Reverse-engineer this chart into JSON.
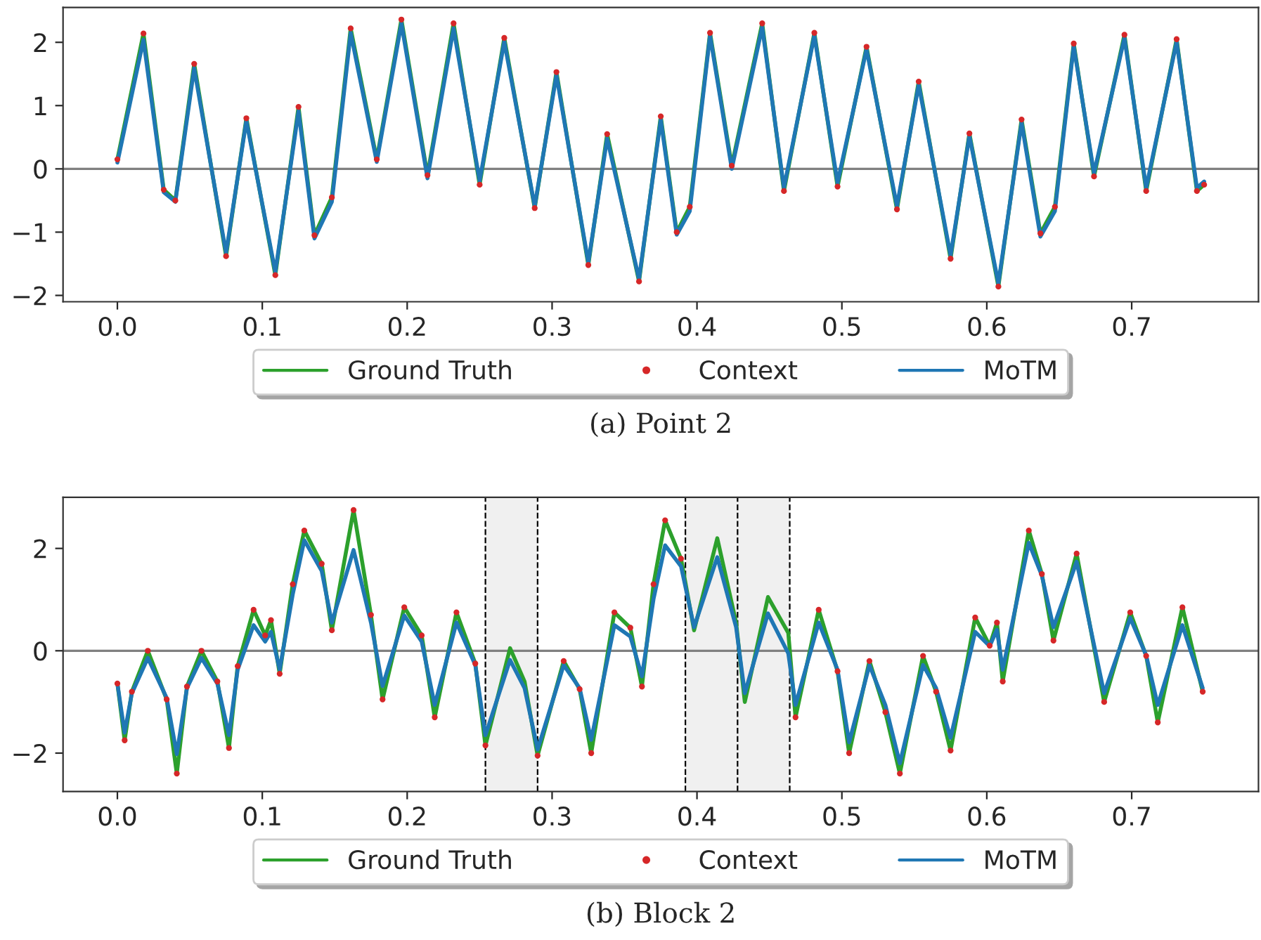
{
  "chart_data": [
    {
      "type": "line",
      "xlim": [
        -0.0375,
        0.7875
      ],
      "ylim": [
        -2.1,
        2.55
      ],
      "xticks": [
        {
          "value": 0,
          "label": "0.0"
        },
        0.1,
        0.2,
        0.3,
        0.4,
        0.5,
        0.6,
        0.7
      ],
      "yticks": [
        -2,
        -1,
        0,
        1,
        2
      ],
      "x": [
        0.0,
        0.018,
        0.032,
        0.04,
        0.053,
        0.075,
        0.089,
        0.109,
        0.125,
        0.136,
        0.148,
        0.161,
        0.179,
        0.196,
        0.214,
        0.232,
        0.25,
        0.267,
        0.288,
        0.303,
        0.325,
        0.338,
        0.36,
        0.375,
        0.386,
        0.395,
        0.409,
        0.424,
        0.445,
        0.46,
        0.481,
        0.497,
        0.517,
        0.538,
        0.553,
        0.575,
        0.588,
        0.608,
        0.624,
        0.637,
        0.647,
        0.66,
        0.674,
        0.695,
        0.71,
        0.731,
        0.745,
        0.75
      ],
      "series": [
        {
          "name": "Ground Truth",
          "type": "line",
          "color": "#2ca02c",
          "values": [
            0.15,
            2.14,
            -0.33,
            -0.5,
            1.66,
            -1.38,
            0.8,
            -1.68,
            0.98,
            -1.05,
            -0.45,
            2.22,
            0.15,
            2.36,
            -0.1,
            2.3,
            -0.25,
            2.07,
            -0.62,
            1.53,
            -1.52,
            0.55,
            -1.78,
            0.83,
            -1.0,
            -0.6,
            2.15,
            0.05,
            2.3,
            -0.35,
            2.15,
            -0.28,
            1.93,
            -0.64,
            1.38,
            -1.42,
            0.56,
            -1.86,
            0.78,
            -1.02,
            -0.6,
            1.98,
            -0.12,
            2.12,
            -0.35,
            2.05,
            -0.35,
            -0.25
          ]
        },
        {
          "name": "Context",
          "type": "scatter",
          "marker": "circle",
          "color": "#d62728",
          "values": [
            0.15,
            2.14,
            -0.33,
            -0.5,
            1.66,
            -1.38,
            0.8,
            -1.68,
            0.98,
            -1.05,
            -0.45,
            2.22,
            0.15,
            2.36,
            -0.1,
            2.3,
            -0.25,
            2.07,
            -0.62,
            1.53,
            -1.52,
            0.55,
            -1.78,
            0.83,
            -1.0,
            -0.6,
            2.15,
            0.05,
            2.3,
            -0.35,
            2.15,
            -0.28,
            1.93,
            -0.64,
            1.38,
            -1.42,
            0.56,
            -1.86,
            0.78,
            -1.02,
            -0.6,
            1.98,
            -0.12,
            2.12,
            -0.35,
            2.05,
            -0.35,
            -0.25
          ]
        },
        {
          "name": "MoTM",
          "type": "line",
          "color": "#1f77b4",
          "values": [
            0.1,
            2.04,
            -0.37,
            -0.52,
            1.59,
            -1.33,
            0.76,
            -1.63,
            0.91,
            -1.1,
            -0.52,
            2.15,
            0.11,
            2.3,
            -0.15,
            2.22,
            -0.19,
            2.01,
            -0.59,
            1.48,
            -1.48,
            0.48,
            -1.74,
            0.78,
            -1.04,
            -0.67,
            2.11,
            0.0,
            2.24,
            -0.3,
            2.11,
            -0.22,
            1.89,
            -0.59,
            1.33,
            -1.37,
            0.52,
            -1.81,
            0.73,
            -1.07,
            -0.67,
            1.94,
            -0.07,
            2.07,
            -0.3,
            2.01,
            -0.3,
            -0.2
          ]
        }
      ],
      "ref_lines": [
        {
          "axis": "y",
          "value": 0,
          "color": "#808080"
        }
      ],
      "legend": "bottom",
      "grid": false,
      "annotations": [
        "(a) Point 2"
      ]
    },
    {
      "type": "line",
      "xlim": [
        -0.0375,
        0.7875
      ],
      "ylim": [
        -2.75,
        3.0
      ],
      "xticks": [
        {
          "value": 0,
          "label": "0.0"
        },
        0.1,
        0.2,
        0.3,
        0.4,
        0.5,
        0.6,
        0.7
      ],
      "yticks": [
        -2,
        0,
        2
      ],
      "x": [
        0.0,
        0.005,
        0.01,
        0.021,
        0.034,
        0.041,
        0.048,
        0.058,
        0.069,
        0.077,
        0.083,
        0.094,
        0.102,
        0.106,
        0.112,
        0.121,
        0.129,
        0.141,
        0.148,
        0.163,
        0.175,
        0.183,
        0.198,
        0.21,
        0.219,
        0.234,
        0.247,
        0.254,
        0.271,
        0.281,
        0.29,
        0.308,
        0.319,
        0.327,
        0.343,
        0.354,
        0.362,
        0.37,
        0.378,
        0.389,
        0.398,
        0.414,
        0.427,
        0.433,
        0.449,
        0.463,
        0.468,
        0.484,
        0.497,
        0.505,
        0.519,
        0.53,
        0.54,
        0.556,
        0.565,
        0.575,
        0.592,
        0.602,
        0.607,
        0.611,
        0.629,
        0.638,
        0.646,
        0.662,
        0.681,
        0.699,
        0.71,
        0.718,
        0.735,
        0.749
      ],
      "series": [
        {
          "name": "Ground Truth",
          "type": "line",
          "color": "#2ca02c",
          "values": [
            -0.64,
            -1.75,
            -0.8,
            0.0,
            -0.95,
            -2.4,
            -0.7,
            0.0,
            -0.6,
            -1.9,
            -0.3,
            0.8,
            0.3,
            0.6,
            -0.45,
            1.3,
            2.35,
            1.7,
            0.4,
            2.75,
            0.7,
            -0.95,
            0.85,
            0.3,
            -1.3,
            0.75,
            -0.25,
            -1.85,
            0.05,
            -0.6,
            -2.05,
            -0.2,
            -0.75,
            -2.0,
            0.75,
            0.45,
            -0.7,
            1.3,
            2.55,
            1.8,
            0.4,
            2.2,
            0.55,
            -1.0,
            1.05,
            0.35,
            -1.3,
            0.8,
            -0.4,
            -2.0,
            -0.2,
            -1.2,
            -2.4,
            -0.1,
            -0.8,
            -1.95,
            0.65,
            0.1,
            0.55,
            -0.6,
            2.35,
            1.5,
            0.2,
            1.9,
            -1.0,
            0.75,
            -0.1,
            -1.4,
            0.85,
            -0.8
          ]
        },
        {
          "name": "Context",
          "type": "scatter",
          "marker": "circle",
          "color": "#d62728",
          "values": [
            -0.64,
            -1.75,
            -0.8,
            0.0,
            -0.95,
            -2.4,
            -0.7,
            0.0,
            -0.6,
            -1.9,
            -0.3,
            0.8,
            0.3,
            0.6,
            -0.45,
            1.3,
            2.35,
            1.7,
            0.4,
            2.75,
            0.7,
            -0.95,
            0.85,
            0.3,
            -1.3,
            0.75,
            -0.25,
            -1.85,
            null,
            null,
            -2.05,
            -0.2,
            -0.75,
            -2.0,
            0.75,
            0.45,
            -0.7,
            1.3,
            2.55,
            1.8,
            null,
            null,
            null,
            null,
            null,
            null,
            -1.3,
            0.8,
            -0.4,
            -2.0,
            -0.2,
            -1.2,
            -2.4,
            -0.1,
            -0.8,
            -1.95,
            0.65,
            0.1,
            0.55,
            -0.6,
            2.35,
            1.5,
            0.2,
            1.9,
            -1.0,
            0.75,
            -0.1,
            -1.4,
            0.85,
            -0.8
          ]
        },
        {
          "name": "MoTM",
          "type": "line",
          "color": "#1f77b4",
          "values": [
            -0.64,
            -1.6,
            -0.83,
            -0.14,
            -0.92,
            -2.02,
            -0.73,
            -0.14,
            -0.64,
            -1.65,
            -0.37,
            0.5,
            0.18,
            0.37,
            -0.37,
            1.1,
            2.16,
            1.56,
            0.55,
            1.97,
            0.55,
            -0.69,
            0.69,
            0.18,
            -1.06,
            0.55,
            -0.28,
            -1.65,
            -0.18,
            -0.73,
            -1.93,
            -0.28,
            -0.73,
            -1.74,
            0.5,
            0.28,
            -0.5,
            1.01,
            2.06,
            1.65,
            0.46,
            1.83,
            0.46,
            -0.83,
            0.73,
            -0.05,
            -1.06,
            0.55,
            -0.37,
            -1.79,
            -0.28,
            -1.06,
            -2.2,
            -0.28,
            -0.73,
            -1.7,
            0.37,
            0.09,
            0.41,
            -0.37,
            2.11,
            1.47,
            0.46,
            1.74,
            -0.83,
            0.64,
            -0.09,
            -1.06,
            0.5,
            -0.73
          ]
        }
      ],
      "ref_lines": [
        {
          "axis": "y",
          "value": 0,
          "color": "#808080"
        },
        {
          "axis": "x",
          "value": 0.254,
          "color": "#000000",
          "line_style": "dashed"
        },
        {
          "axis": "x",
          "value": 0.29,
          "color": "#000000",
          "line_style": "dashed"
        },
        {
          "axis": "x",
          "value": 0.392,
          "color": "#000000",
          "line_style": "dashed"
        },
        {
          "axis": "x",
          "value": 0.428,
          "color": "#000000",
          "line_style": "dashed"
        },
        {
          "axis": "x",
          "value": 0.464,
          "color": "#000000",
          "line_style": "dashed"
        }
      ],
      "bands": [
        {
          "axis": "x",
          "from": 0.254,
          "to": 0.29,
          "color": "#f0f0f0"
        },
        {
          "axis": "x",
          "from": 0.392,
          "to": 0.428,
          "color": "#f0f0f0"
        },
        {
          "axis": "x",
          "from": 0.428,
          "to": 0.464,
          "color": "#f0f0f0"
        }
      ],
      "legend": "bottom",
      "grid": false,
      "annotations": [
        "(b) Block 2"
      ]
    }
  ]
}
